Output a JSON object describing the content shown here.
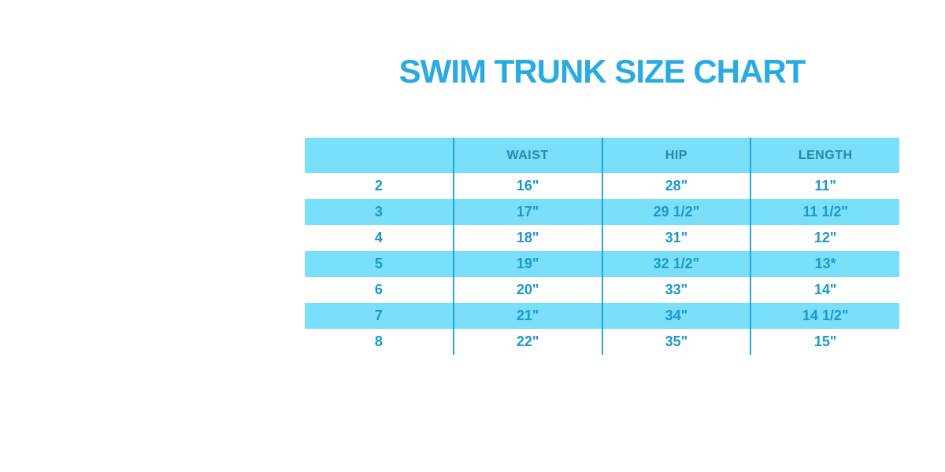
{
  "page_title": "SWIM TRUNK SIZE CHART",
  "colors": {
    "title_blue": "#29ABE2",
    "row_highlight_cyan": "#7ADFF9",
    "header_text_blue": "#2C86B2",
    "cell_text_blue": "#1D97CB",
    "divider_teal": "#29A7CE",
    "background": "#FFFFFF"
  },
  "chart_data": {
    "type": "table",
    "title": "SWIM TRUNK SIZE CHART",
    "columns": [
      "",
      "WAIST",
      "HIP",
      "LENGTH"
    ],
    "first_column_meaning": "size",
    "rows": [
      [
        "2",
        "16\"",
        "28\"",
        "11\""
      ],
      [
        "3",
        "17\"",
        "29 1/2\"",
        "11 1/2\""
      ],
      [
        "4",
        "18\"",
        "31\"",
        "12\""
      ],
      [
        "5",
        "19\"",
        "32 1/2\"",
        "13*"
      ],
      [
        "6",
        "20\"",
        "33\"",
        "14\""
      ],
      [
        "7",
        "21\"",
        "34\"",
        "14 1/2\""
      ],
      [
        "8",
        "22\"",
        "35\"",
        "15\""
      ]
    ],
    "layout_hints": {
      "row_striping": "white / cyan alternating, header cyan",
      "grid": "vertical column dividers only, no horizontal lines"
    }
  }
}
